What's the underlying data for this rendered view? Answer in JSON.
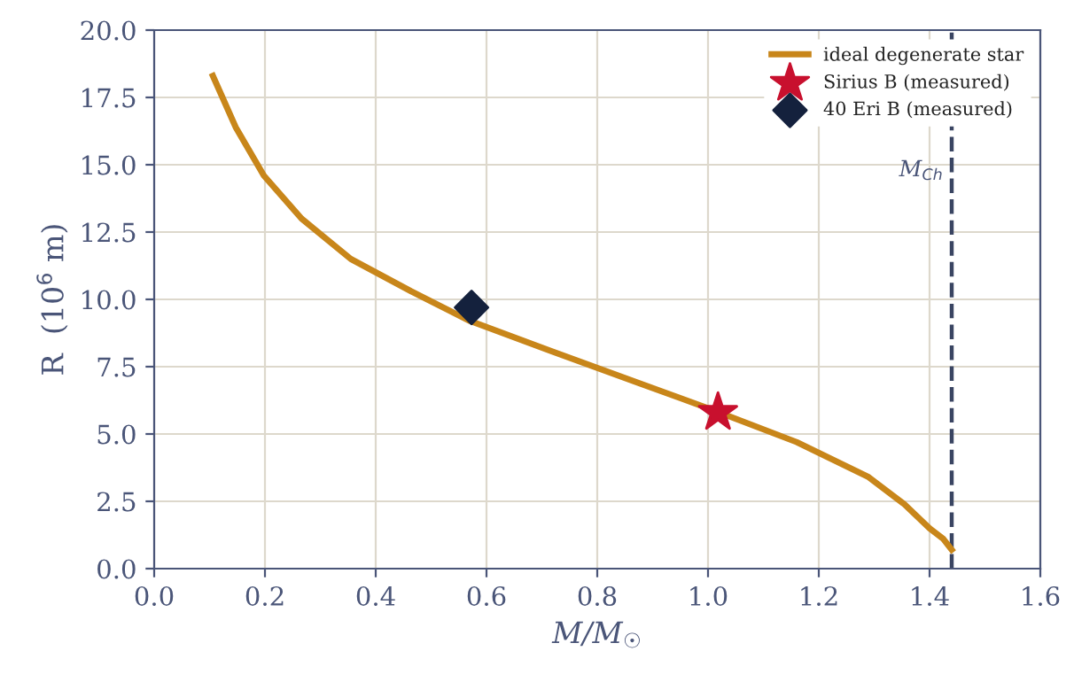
{
  "chart_data": {
    "type": "line",
    "xlabel": "M/M$_{☉}$",
    "ylabel": "R  (10$^{6}$ m)",
    "xlim": [
      0.0,
      1.6
    ],
    "xticks": [
      {
        "value": 0,
        "label": "0.0"
      },
      {
        "value": 0.2,
        "label": "0.2"
      },
      {
        "value": 0.4,
        "label": "0.4"
      },
      {
        "value": 0.6,
        "label": "0.6"
      },
      {
        "value": 0.8,
        "label": "0.8"
      },
      {
        "value": 1.0,
        "label": "1.0"
      },
      {
        "value": 1.2,
        "label": "1.2"
      },
      {
        "value": 1.4,
        "label": "1.4"
      },
      {
        "value": 1.6,
        "label": "1.6"
      }
    ],
    "ylim": [
      0.0,
      20.0
    ],
    "yticks": [
      {
        "value": 0,
        "label": "0.0"
      },
      {
        "value": 2.5,
        "label": "2.5"
      },
      {
        "value": 5,
        "label": "5.0"
      },
      {
        "value": 7.5,
        "label": "7.5"
      },
      {
        "value": 10,
        "label": "10.0"
      },
      {
        "value": 12.5,
        "label": "12.5"
      },
      {
        "value": 15,
        "label": "15.0"
      },
      {
        "value": 17.5,
        "label": "17.5"
      },
      {
        "value": 20,
        "label": "20.0"
      }
    ],
    "grid": true,
    "legend": "top right",
    "series": [
      {
        "name": "ideal degenerate star",
        "color": "#c8861a",
        "marker": "none",
        "line_style": "solid",
        "x": [
          0.106,
          0.147,
          0.198,
          0.266,
          0.355,
          0.464,
          0.57,
          0.714,
          0.874,
          1.008,
          1.16,
          1.29,
          1.354,
          1.4,
          1.425,
          1.44
        ],
        "values": [
          18.3,
          16.4,
          14.6,
          13.0,
          11.5,
          10.3,
          9.2,
          8.1,
          6.9,
          5.9,
          4.7,
          3.4,
          2.4,
          1.5,
          1.1,
          0.7
        ]
      },
      {
        "name": "Sirius B (measured)",
        "type": "scatter",
        "color": "#c8102e",
        "marker": "star",
        "x": [
          1.018
        ],
        "values": [
          5.8
        ]
      },
      {
        "name": "40 Eri B (measured)",
        "type": "scatter",
        "color": "#14213d",
        "marker": "diamond",
        "x": [
          0.573
        ],
        "values": [
          9.7
        ]
      }
    ],
    "ref_lines": [
      {
        "axis": "x",
        "value": 1.44,
        "label": "M$_{Ch}$",
        "color": "#3a4562",
        "line_style": "dashed"
      }
    ]
  }
}
